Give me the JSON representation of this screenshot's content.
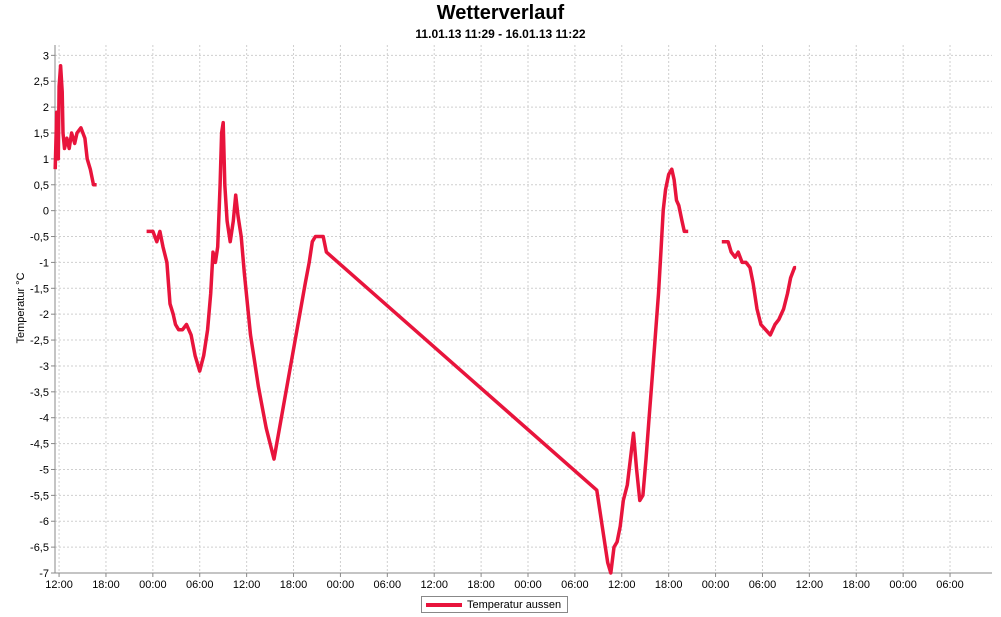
{
  "chart_data": {
    "type": "line",
    "title": "Wetterverlauf",
    "subtitle": "11.01.13 11:29  - 16.01.13 11:22",
    "ylabel": "Temperatur °C",
    "xlabel": "",
    "ylim": [
      -7,
      3.2
    ],
    "yticks": [
      3,
      2.5,
      2,
      1.5,
      1,
      0.5,
      0,
      -0.5,
      -1,
      -1.5,
      -2,
      -2.5,
      -3,
      -3.5,
      -4,
      -4.5,
      -5,
      -5.5,
      -6,
      -6.5,
      -7
    ],
    "ytick_labels": [
      "3",
      "2,5",
      "2",
      "1,5",
      "1",
      "0,5",
      "0",
      "-0,5",
      "-1",
      "-1,5",
      "-2",
      "-2,5",
      "-3",
      "-3,5",
      "-4",
      "-4,5",
      "-5",
      "-5,5",
      "-6",
      "-6,5",
      "-7"
    ],
    "x_unit": "hours after 11.01.13 00:00",
    "xlim": [
      11.48,
      131.37
    ],
    "xticks": [
      12,
      18,
      24,
      30,
      36,
      42,
      48,
      54,
      60,
      66,
      72,
      78,
      84,
      90,
      96,
      102,
      108,
      114,
      120,
      126
    ],
    "xtick_labels": [
      "12:00",
      "18:00",
      "00:00",
      "06:00",
      "12:00",
      "18:00",
      "00:00",
      "06:00",
      "12:00",
      "18:00",
      "00:00",
      "06:00",
      "12:00",
      "18:00",
      "00:00",
      "06:00",
      "12:00",
      "18:00",
      "00:00",
      "06:00"
    ],
    "grid": true,
    "legend": "bottom-center",
    "series": [
      {
        "name": "Temperatur aussen",
        "color": "#e8143c",
        "segments": [
          [
            [
              11.5,
              0.8
            ],
            [
              11.7,
              1.9
            ],
            [
              11.9,
              1.0
            ],
            [
              12.0,
              2.4
            ],
            [
              12.2,
              2.8
            ],
            [
              12.4,
              2.3
            ],
            [
              12.5,
              1.5
            ],
            [
              12.7,
              1.2
            ],
            [
              13.0,
              1.4
            ],
            [
              13.3,
              1.2
            ],
            [
              13.6,
              1.5
            ],
            [
              14.0,
              1.3
            ],
            [
              14.3,
              1.5
            ],
            [
              14.8,
              1.6
            ],
            [
              15.3,
              1.4
            ],
            [
              15.6,
              1.0
            ],
            [
              16.0,
              0.8
            ],
            [
              16.4,
              0.5
            ],
            [
              16.8,
              0.5
            ]
          ],
          [
            [
              23.2,
              -0.4
            ],
            [
              24.0,
              -0.4
            ],
            [
              24.5,
              -0.6
            ],
            [
              24.9,
              -0.4
            ],
            [
              25.3,
              -0.7
            ],
            [
              25.8,
              -1.0
            ],
            [
              26.2,
              -1.8
            ],
            [
              26.6,
              -2.0
            ],
            [
              26.9,
              -2.2
            ],
            [
              27.3,
              -2.3
            ],
            [
              27.8,
              -2.3
            ],
            [
              28.3,
              -2.2
            ],
            [
              28.9,
              -2.4
            ],
            [
              29.4,
              -2.8
            ],
            [
              30.0,
              -3.1
            ],
            [
              30.5,
              -2.8
            ],
            [
              31.0,
              -2.3
            ],
            [
              31.4,
              -1.6
            ],
            [
              31.7,
              -0.8
            ],
            [
              32.0,
              -1.0
            ],
            [
              32.3,
              -0.7
            ],
            [
              32.6,
              0.5
            ],
            [
              32.8,
              1.5
            ],
            [
              33.0,
              1.7
            ],
            [
              33.2,
              0.5
            ],
            [
              33.5,
              -0.2
            ],
            [
              33.9,
              -0.6
            ],
            [
              34.3,
              -0.2
            ],
            [
              34.6,
              0.3
            ],
            [
              34.9,
              -0.1
            ],
            [
              35.3,
              -0.5
            ],
            [
              35.7,
              -1.2
            ],
            [
              36.1,
              -1.8
            ],
            [
              36.5,
              -2.4
            ],
            [
              37.0,
              -2.9
            ],
            [
              37.5,
              -3.4
            ],
            [
              38.0,
              -3.8
            ],
            [
              38.5,
              -4.2
            ],
            [
              39.0,
              -4.5
            ],
            [
              39.5,
              -4.8
            ],
            [
              43.5,
              -1.4
            ],
            [
              44.0,
              -1.0
            ],
            [
              44.4,
              -0.6
            ],
            [
              44.8,
              -0.5
            ],
            [
              45.3,
              -0.5
            ],
            [
              45.8,
              -0.5
            ],
            [
              46.2,
              -0.8
            ],
            [
              80.8,
              -5.4
            ],
            [
              81.3,
              -5.9
            ],
            [
              81.7,
              -6.3
            ],
            [
              82.2,
              -6.8
            ],
            [
              82.6,
              -7.0
            ],
            [
              83.0,
              -6.5
            ],
            [
              83.4,
              -6.4
            ],
            [
              83.8,
              -6.1
            ],
            [
              84.2,
              -5.6
            ],
            [
              84.7,
              -5.3
            ],
            [
              85.1,
              -4.8
            ],
            [
              85.5,
              -4.3
            ],
            [
              85.9,
              -5.0
            ],
            [
              86.3,
              -5.6
            ],
            [
              86.7,
              -5.5
            ],
            [
              87.1,
              -4.8
            ],
            [
              87.5,
              -4.0
            ],
            [
              87.9,
              -3.2
            ],
            [
              88.3,
              -2.4
            ],
            [
              88.7,
              -1.6
            ],
            [
              89.0,
              -0.8
            ],
            [
              89.3,
              0.0
            ],
            [
              89.6,
              0.4
            ],
            [
              90.0,
              0.7
            ],
            [
              90.4,
              0.8
            ],
            [
              90.7,
              0.6
            ],
            [
              91.0,
              0.2
            ],
            [
              91.3,
              0.1
            ],
            [
              91.7,
              -0.2
            ],
            [
              92.0,
              -0.4
            ],
            [
              92.5,
              -0.4
            ]
          ],
          [
            [
              96.8,
              -0.6
            ],
            [
              97.2,
              -0.6
            ],
            [
              97.6,
              -0.6
            ],
            [
              98.0,
              -0.8
            ],
            [
              98.5,
              -0.9
            ],
            [
              98.9,
              -0.8
            ],
            [
              99.4,
              -1.0
            ],
            [
              99.9,
              -1.0
            ],
            [
              100.4,
              -1.1
            ],
            [
              100.8,
              -1.4
            ],
            [
              101.3,
              -1.9
            ],
            [
              101.8,
              -2.2
            ],
            [
              102.4,
              -2.3
            ],
            [
              103.0,
              -2.4
            ],
            [
              103.6,
              -2.2
            ],
            [
              104.1,
              -2.1
            ],
            [
              104.7,
              -1.9
            ],
            [
              105.2,
              -1.6
            ],
            [
              105.6,
              -1.3
            ],
            [
              106.1,
              -1.1
            ],
            [
              106.3,
              -1.1
            ]
          ]
        ]
      }
    ]
  }
}
